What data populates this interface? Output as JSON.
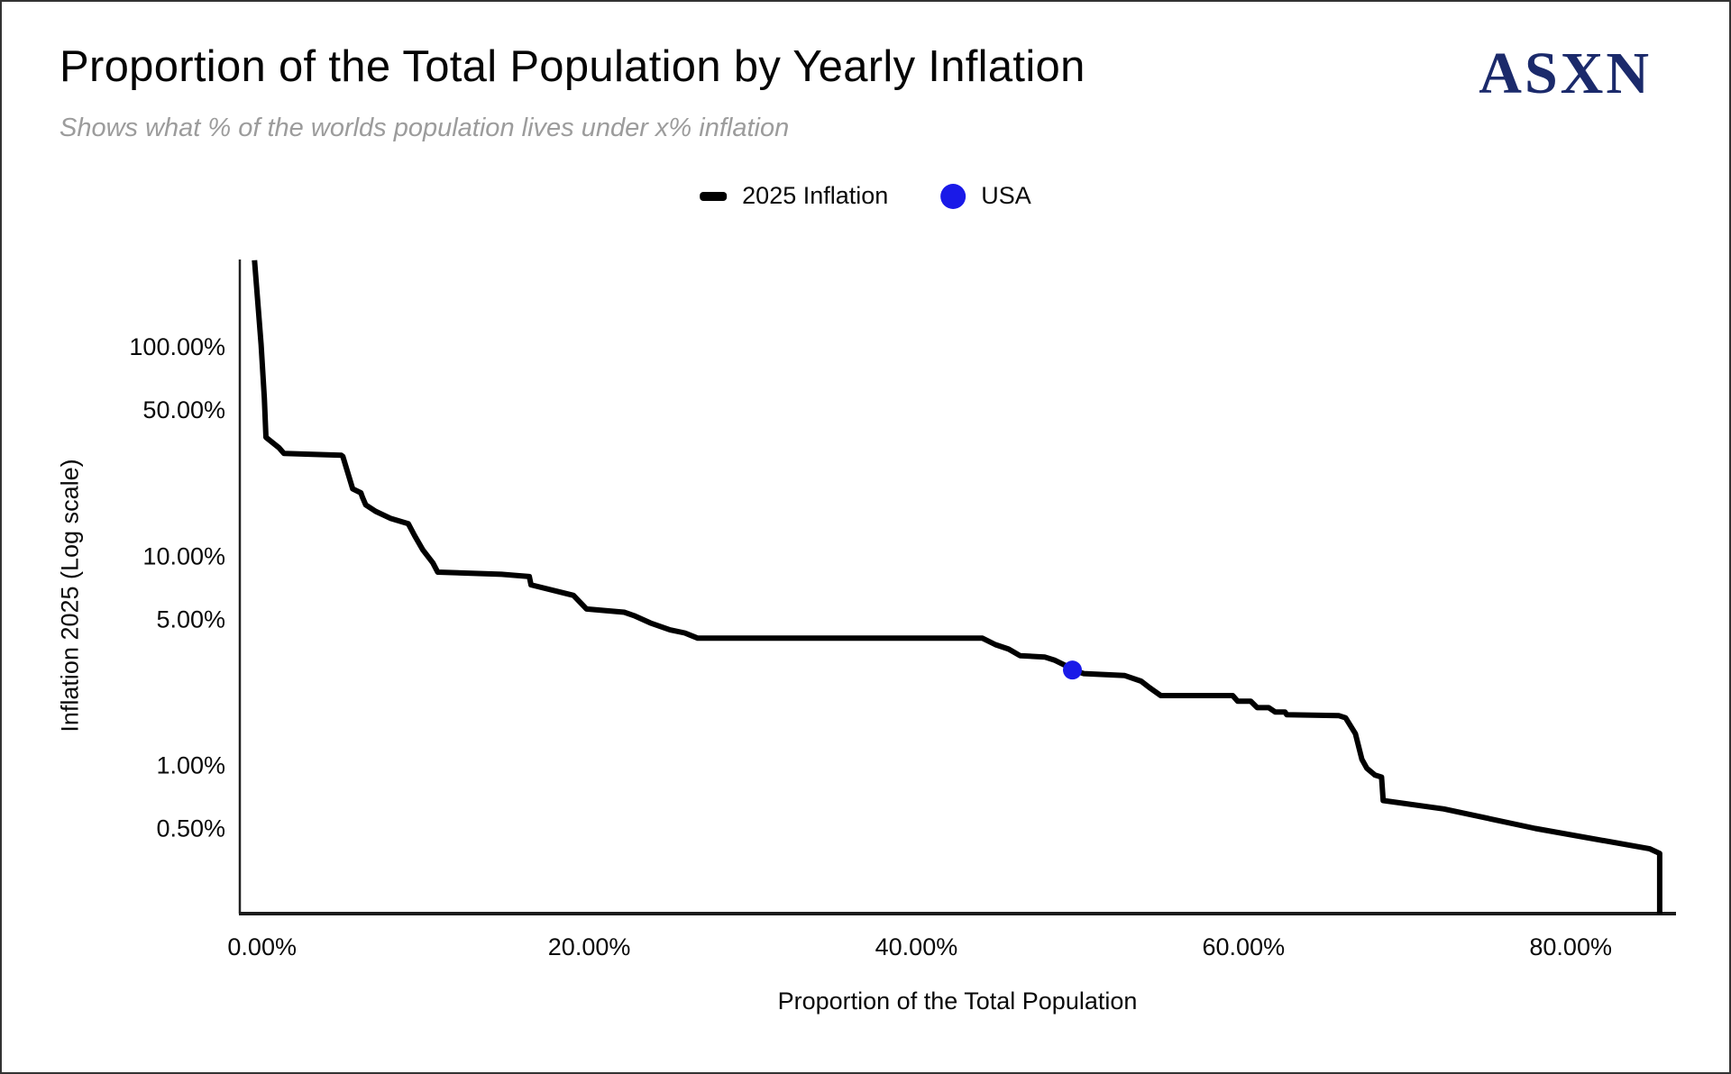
{
  "header": {
    "title": "Proportion of the Total Population by Yearly Inflation",
    "subtitle": "Shows what % of the worlds population lives under x% inflation",
    "logo_text": "ASXN",
    "logo_color": "#1b2a6b"
  },
  "legend": {
    "items": [
      {
        "label": "2025 Inflation",
        "marker": "line",
        "color": "#000000"
      },
      {
        "label": "USA",
        "marker": "dot",
        "color": "#1a1ae8"
      }
    ]
  },
  "chart_data": {
    "type": "line",
    "title": "Proportion of the Total Population by Yearly Inflation",
    "subtitle": "Shows what % of the worlds population lives under x% inflation",
    "xlabel": "Proportion of the Total Population",
    "ylabel": "Inflation 2025 (Log scale)",
    "grid": false,
    "legend_position": "top-center",
    "x_axis": {
      "unit": "%",
      "min": -0.7,
      "max": 87.1,
      "ticks": [
        {
          "value": 0,
          "label": "0.00%"
        },
        {
          "value": 20,
          "label": "20.00%"
        },
        {
          "value": 40,
          "label": "40.00%"
        },
        {
          "value": 60,
          "label": "60.00%"
        },
        {
          "value": 80,
          "label": "80.00%"
        }
      ]
    },
    "y_axis": {
      "scale": "log",
      "unit": "%",
      "min": 0.196,
      "max": 262,
      "ticks": [
        {
          "value": 100,
          "label": "100.00%"
        },
        {
          "value": 50,
          "label": "50.00%"
        },
        {
          "value": 10,
          "label": "10.00%"
        },
        {
          "value": 5,
          "label": "5.00%"
        },
        {
          "value": 1,
          "label": "1.00%"
        },
        {
          "value": 0.5,
          "label": "0.50%"
        }
      ]
    },
    "series": [
      {
        "name": "2025 Inflation",
        "color": "#000000",
        "points": [
          [
            0.2,
            260
          ],
          [
            0.6,
            103
          ],
          [
            0.8,
            57
          ],
          [
            0.9,
            37
          ],
          [
            1.7,
            33
          ],
          [
            2.0,
            31
          ],
          [
            5.5,
            30.4
          ],
          [
            5.6,
            30
          ],
          [
            6.2,
            21
          ],
          [
            6.7,
            20.1
          ],
          [
            6.8,
            19.1
          ],
          [
            7.0,
            17.6
          ],
          [
            7.6,
            16.4
          ],
          [
            8.5,
            15.2
          ],
          [
            9.6,
            14.3
          ],
          [
            10.0,
            12.5
          ],
          [
            10.5,
            10.7
          ],
          [
            11.1,
            9.3
          ],
          [
            11.4,
            8.4
          ],
          [
            15.3,
            8.2
          ],
          [
            17.0,
            8.0
          ],
          [
            17.1,
            7.3
          ],
          [
            19.7,
            6.5
          ],
          [
            20.5,
            5.6
          ],
          [
            22.8,
            5.4
          ],
          [
            23.4,
            5.2
          ],
          [
            24.4,
            4.8
          ],
          [
            25.6,
            4.45
          ],
          [
            26.5,
            4.3
          ],
          [
            27.3,
            4.06
          ],
          [
            44.7,
            4.06
          ],
          [
            45.5,
            3.78
          ],
          [
            46.3,
            3.6
          ],
          [
            47.0,
            3.35
          ],
          [
            48.5,
            3.3
          ],
          [
            49.1,
            3.19
          ],
          [
            49.8,
            3.0
          ],
          [
            50.2,
            2.86
          ],
          [
            50.9,
            2.75
          ],
          [
            53.4,
            2.69
          ],
          [
            54.4,
            2.53
          ],
          [
            54.9,
            2.36
          ],
          [
            55.6,
            2.16
          ],
          [
            60.0,
            2.16
          ],
          [
            60.3,
            2.03
          ],
          [
            61.1,
            2.03
          ],
          [
            61.5,
            1.89
          ],
          [
            62.2,
            1.89
          ],
          [
            62.6,
            1.8
          ],
          [
            63.2,
            1.8
          ],
          [
            63.3,
            1.75
          ],
          [
            66.5,
            1.73
          ],
          [
            66.9,
            1.69
          ],
          [
            67.5,
            1.42
          ],
          [
            67.9,
            1.07
          ],
          [
            68.2,
            0.97
          ],
          [
            68.7,
            0.9
          ],
          [
            69.1,
            0.88
          ],
          [
            69.2,
            0.68
          ],
          [
            72.9,
            0.62
          ],
          [
            78.5,
            0.5
          ],
          [
            85.5,
            0.4
          ],
          [
            86.1,
            0.38
          ],
          [
            86.1,
            0.196
          ]
        ]
      }
    ],
    "markers": [
      {
        "name": "USA",
        "color": "#1a1ae8",
        "x": 50.2,
        "y": 2.86
      }
    ]
  }
}
